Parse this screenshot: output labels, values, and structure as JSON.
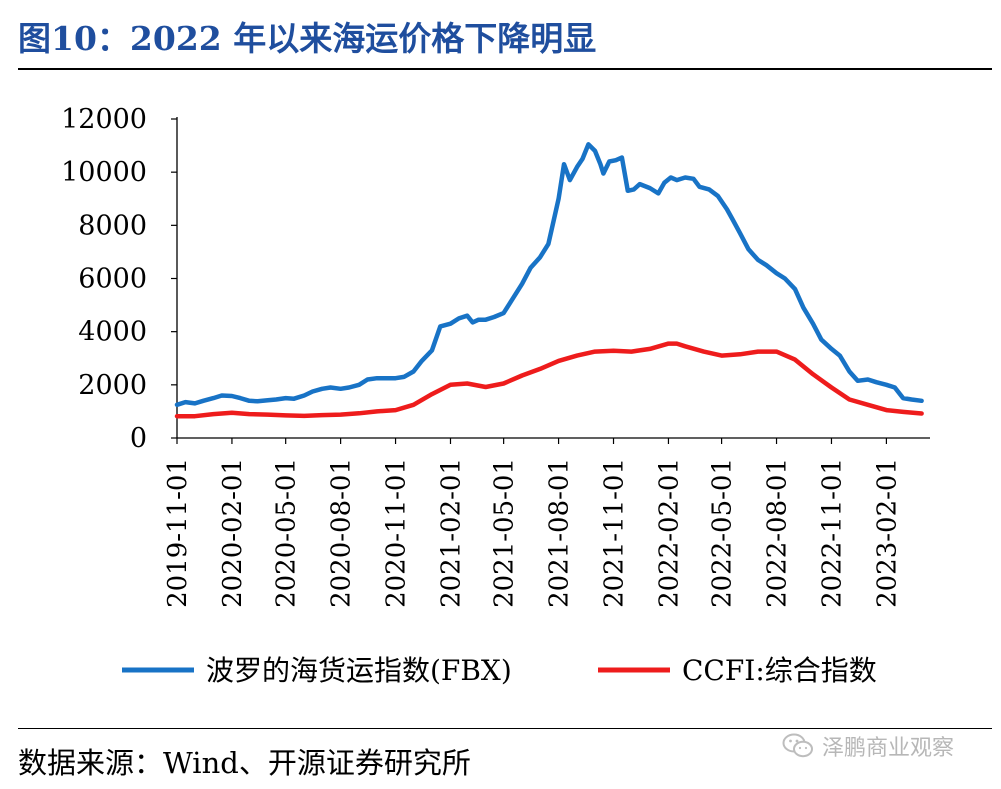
{
  "figure": {
    "title": "图10：2022 年以来海运价格下降明显",
    "source": "数据来源：Wind、开源证券研究所",
    "watermark": "泽鹏商业观察",
    "watermark_icon": "wechat-icon"
  },
  "chart_data": {
    "type": "line",
    "xlabel": "",
    "ylabel": "",
    "ylim": [
      0,
      12000
    ],
    "yticks": [
      0,
      2000,
      4000,
      6000,
      8000,
      10000,
      12000
    ],
    "xlim": [
      "2019-11-01",
      "2023-04-15"
    ],
    "xticks": [
      "2019-11-01",
      "2020-02-01",
      "2020-05-01",
      "2020-08-01",
      "2020-11-01",
      "2021-02-01",
      "2021-05-01",
      "2021-08-01",
      "2021-11-01",
      "2022-02-01",
      "2022-05-01",
      "2022-08-01",
      "2022-11-01",
      "2023-02-01"
    ],
    "grid": false,
    "legend": "bottom",
    "series": [
      {
        "name": "波罗的海货运指数(FBX)",
        "color": "#1873c6",
        "points": [
          [
            "2019-11-01",
            1250
          ],
          [
            "2019-11-15",
            1350
          ],
          [
            "2019-12-01",
            1300
          ],
          [
            "2019-12-15",
            1400
          ],
          [
            "2020-01-01",
            1500
          ],
          [
            "2020-01-15",
            1600
          ],
          [
            "2020-02-01",
            1580
          ],
          [
            "2020-02-15",
            1500
          ],
          [
            "2020-03-01",
            1400
          ],
          [
            "2020-03-15",
            1380
          ],
          [
            "2020-04-01",
            1420
          ],
          [
            "2020-04-15",
            1450
          ],
          [
            "2020-05-01",
            1500
          ],
          [
            "2020-05-15",
            1480
          ],
          [
            "2020-06-01",
            1600
          ],
          [
            "2020-06-15",
            1750
          ],
          [
            "2020-07-01",
            1850
          ],
          [
            "2020-07-15",
            1900
          ],
          [
            "2020-08-01",
            1850
          ],
          [
            "2020-08-15",
            1900
          ],
          [
            "2020-09-01",
            2000
          ],
          [
            "2020-09-15",
            2200
          ],
          [
            "2020-10-01",
            2250
          ],
          [
            "2020-10-15",
            2250
          ],
          [
            "2020-11-01",
            2250
          ],
          [
            "2020-11-15",
            2300
          ],
          [
            "2020-12-01",
            2500
          ],
          [
            "2020-12-15",
            2900
          ],
          [
            "2021-01-01",
            3300
          ],
          [
            "2021-01-15",
            4200
          ],
          [
            "2021-02-01",
            4300
          ],
          [
            "2021-02-15",
            4500
          ],
          [
            "2021-03-01",
            4600
          ],
          [
            "2021-03-10",
            4350
          ],
          [
            "2021-03-20",
            4450
          ],
          [
            "2021-04-01",
            4450
          ],
          [
            "2021-04-15",
            4550
          ],
          [
            "2021-05-01",
            4700
          ],
          [
            "2021-05-15",
            5200
          ],
          [
            "2021-06-01",
            5800
          ],
          [
            "2021-06-15",
            6400
          ],
          [
            "2021-07-01",
            6800
          ],
          [
            "2021-07-15",
            7300
          ],
          [
            "2021-08-01",
            9000
          ],
          [
            "2021-08-10",
            10300
          ],
          [
            "2021-08-20",
            9700
          ],
          [
            "2021-09-01",
            10200
          ],
          [
            "2021-09-10",
            10500
          ],
          [
            "2021-09-20",
            11050
          ],
          [
            "2021-10-01",
            10800
          ],
          [
            "2021-10-10",
            10300
          ],
          [
            "2021-10-15",
            9950
          ],
          [
            "2021-10-25",
            10400
          ],
          [
            "2021-11-05",
            10450
          ],
          [
            "2021-11-15",
            10550
          ],
          [
            "2021-11-25",
            9300
          ],
          [
            "2021-12-05",
            9350
          ],
          [
            "2021-12-15",
            9550
          ],
          [
            "2022-01-01",
            9400
          ],
          [
            "2022-01-15",
            9200
          ],
          [
            "2022-01-25",
            9600
          ],
          [
            "2022-02-05",
            9800
          ],
          [
            "2022-02-15",
            9700
          ],
          [
            "2022-03-01",
            9800
          ],
          [
            "2022-03-15",
            9750
          ],
          [
            "2022-03-25",
            9450
          ],
          [
            "2022-04-10",
            9350
          ],
          [
            "2022-04-25",
            9100
          ],
          [
            "2022-05-10",
            8600
          ],
          [
            "2022-05-20",
            8200
          ],
          [
            "2022-06-01",
            7700
          ],
          [
            "2022-06-15",
            7100
          ],
          [
            "2022-07-01",
            6700
          ],
          [
            "2022-07-15",
            6500
          ],
          [
            "2022-08-01",
            6200
          ],
          [
            "2022-08-15",
            6000
          ],
          [
            "2022-09-01",
            5600
          ],
          [
            "2022-09-15",
            4900
          ],
          [
            "2022-10-01",
            4300
          ],
          [
            "2022-10-15",
            3700
          ],
          [
            "2022-11-01",
            3350
          ],
          [
            "2022-11-15",
            3100
          ],
          [
            "2022-12-01",
            2500
          ],
          [
            "2022-12-15",
            2150
          ],
          [
            "2023-01-01",
            2200
          ],
          [
            "2023-01-15",
            2100
          ],
          [
            "2023-02-01",
            2000
          ],
          [
            "2023-02-15",
            1900
          ],
          [
            "2023-03-01",
            1500
          ],
          [
            "2023-03-15",
            1450
          ],
          [
            "2023-04-01",
            1400
          ]
        ]
      },
      {
        "name": "CCFI:综合指数",
        "color": "#ee1c1c",
        "points": [
          [
            "2019-11-01",
            820
          ],
          [
            "2019-12-01",
            820
          ],
          [
            "2020-01-01",
            900
          ],
          [
            "2020-02-01",
            950
          ],
          [
            "2020-03-01",
            900
          ],
          [
            "2020-04-01",
            880
          ],
          [
            "2020-05-01",
            850
          ],
          [
            "2020-06-01",
            830
          ],
          [
            "2020-07-01",
            860
          ],
          [
            "2020-08-01",
            880
          ],
          [
            "2020-09-01",
            930
          ],
          [
            "2020-10-01",
            1000
          ],
          [
            "2020-11-01",
            1050
          ],
          [
            "2020-12-01",
            1250
          ],
          [
            "2021-01-01",
            1650
          ],
          [
            "2021-02-01",
            2000
          ],
          [
            "2021-03-01",
            2050
          ],
          [
            "2021-04-01",
            1920
          ],
          [
            "2021-05-01",
            2050
          ],
          [
            "2021-06-01",
            2350
          ],
          [
            "2021-07-01",
            2600
          ],
          [
            "2021-08-01",
            2900
          ],
          [
            "2021-09-01",
            3100
          ],
          [
            "2021-10-01",
            3250
          ],
          [
            "2021-11-01",
            3280
          ],
          [
            "2021-12-01",
            3250
          ],
          [
            "2022-01-01",
            3350
          ],
          [
            "2022-02-01",
            3550
          ],
          [
            "2022-02-15",
            3550
          ],
          [
            "2022-03-01",
            3450
          ],
          [
            "2022-04-01",
            3250
          ],
          [
            "2022-05-01",
            3100
          ],
          [
            "2022-06-01",
            3150
          ],
          [
            "2022-07-01",
            3250
          ],
          [
            "2022-08-01",
            3250
          ],
          [
            "2022-09-01",
            2950
          ],
          [
            "2022-10-01",
            2400
          ],
          [
            "2022-11-01",
            1900
          ],
          [
            "2022-12-01",
            1450
          ],
          [
            "2023-01-01",
            1250
          ],
          [
            "2023-02-01",
            1050
          ],
          [
            "2023-03-01",
            980
          ],
          [
            "2023-04-01",
            920
          ]
        ]
      }
    ]
  }
}
